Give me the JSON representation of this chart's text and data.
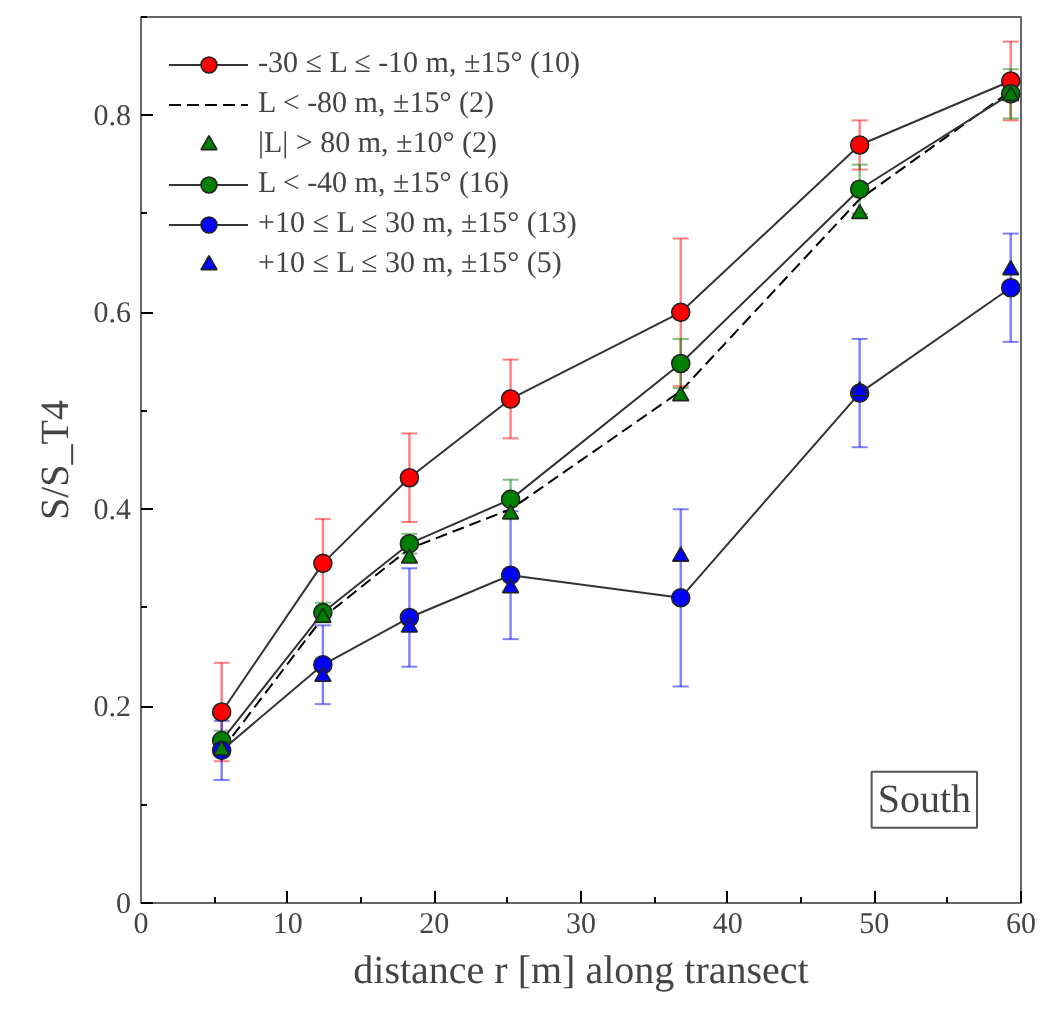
{
  "chart_data": {
    "type": "line",
    "xlabel": "distance r [m] along transect",
    "ylabel": "S/S_T4",
    "x": [
      5.5,
      12.4,
      18.3,
      25.2,
      36.8,
      49,
      59.3
    ],
    "xlim": [
      0,
      60
    ],
    "ylim": [
      0,
      0.9
    ],
    "xticks": [
      0,
      10,
      20,
      30,
      40,
      50,
      60
    ],
    "yticks": [
      0,
      0.2,
      0.4,
      0.6,
      0.8
    ],
    "grid": false,
    "legend": "top left",
    "annotations": [
      "South"
    ],
    "series": [
      {
        "name": "-30 ≤ L ≤ -10 m, ±15° (10)",
        "color": "#ff0000",
        "marker": "circle",
        "line_style": "solid",
        "values": [
          0.194,
          0.345,
          0.432,
          0.512,
          0.6,
          0.77,
          0.835
        ],
        "errors": [
          0.05,
          0.045,
          0.045,
          0.04,
          0.075,
          0.025,
          0.04
        ]
      },
      {
        "name": "L < -80 m, ±15° (2)",
        "color": "#000000",
        "marker": "none",
        "line_style": "dashed",
        "values": [
          0.155,
          0.29,
          0.36,
          0.4,
          0.52,
          0.715,
          0.825
        ]
      },
      {
        "name": "|L| > 80 m, ±10° (2)",
        "type": "scatter",
        "color": "#008000",
        "marker": "triangle",
        "values": [
          0.155,
          0.29,
          0.35,
          0.395,
          0.515,
          0.7,
          0.82
        ]
      },
      {
        "name": "L < -40 m, ±15° (16)",
        "color": "#008000",
        "marker": "circle",
        "line_style": "solid",
        "values": [
          0.165,
          0.295,
          0.365,
          0.41,
          0.548,
          0.725,
          0.822
        ],
        "errors": [
          0.01,
          0.01,
          0.01,
          0.02,
          0.025,
          0.025,
          0.025
        ]
      },
      {
        "name": "+10 ≤ L ≤ 30 m, ±15° (13)",
        "color": "#0000ff",
        "marker": "circle",
        "line_style": "solid",
        "values": [
          0.155,
          0.242,
          0.29,
          0.333,
          0.31,
          0.518,
          0.625
        ],
        "errors": [
          0.03,
          0.04,
          0.05,
          0.065,
          0.09,
          0.055,
          0.055
        ]
      },
      {
        "name": "+10 ≤ L ≤ 30 m, ±15° (5)",
        "type": "scatter",
        "color": "#0000ff",
        "marker": "triangle",
        "values": [
          null,
          0.23,
          0.28,
          0.32,
          0.352,
          0.52,
          0.643
        ]
      }
    ]
  }
}
